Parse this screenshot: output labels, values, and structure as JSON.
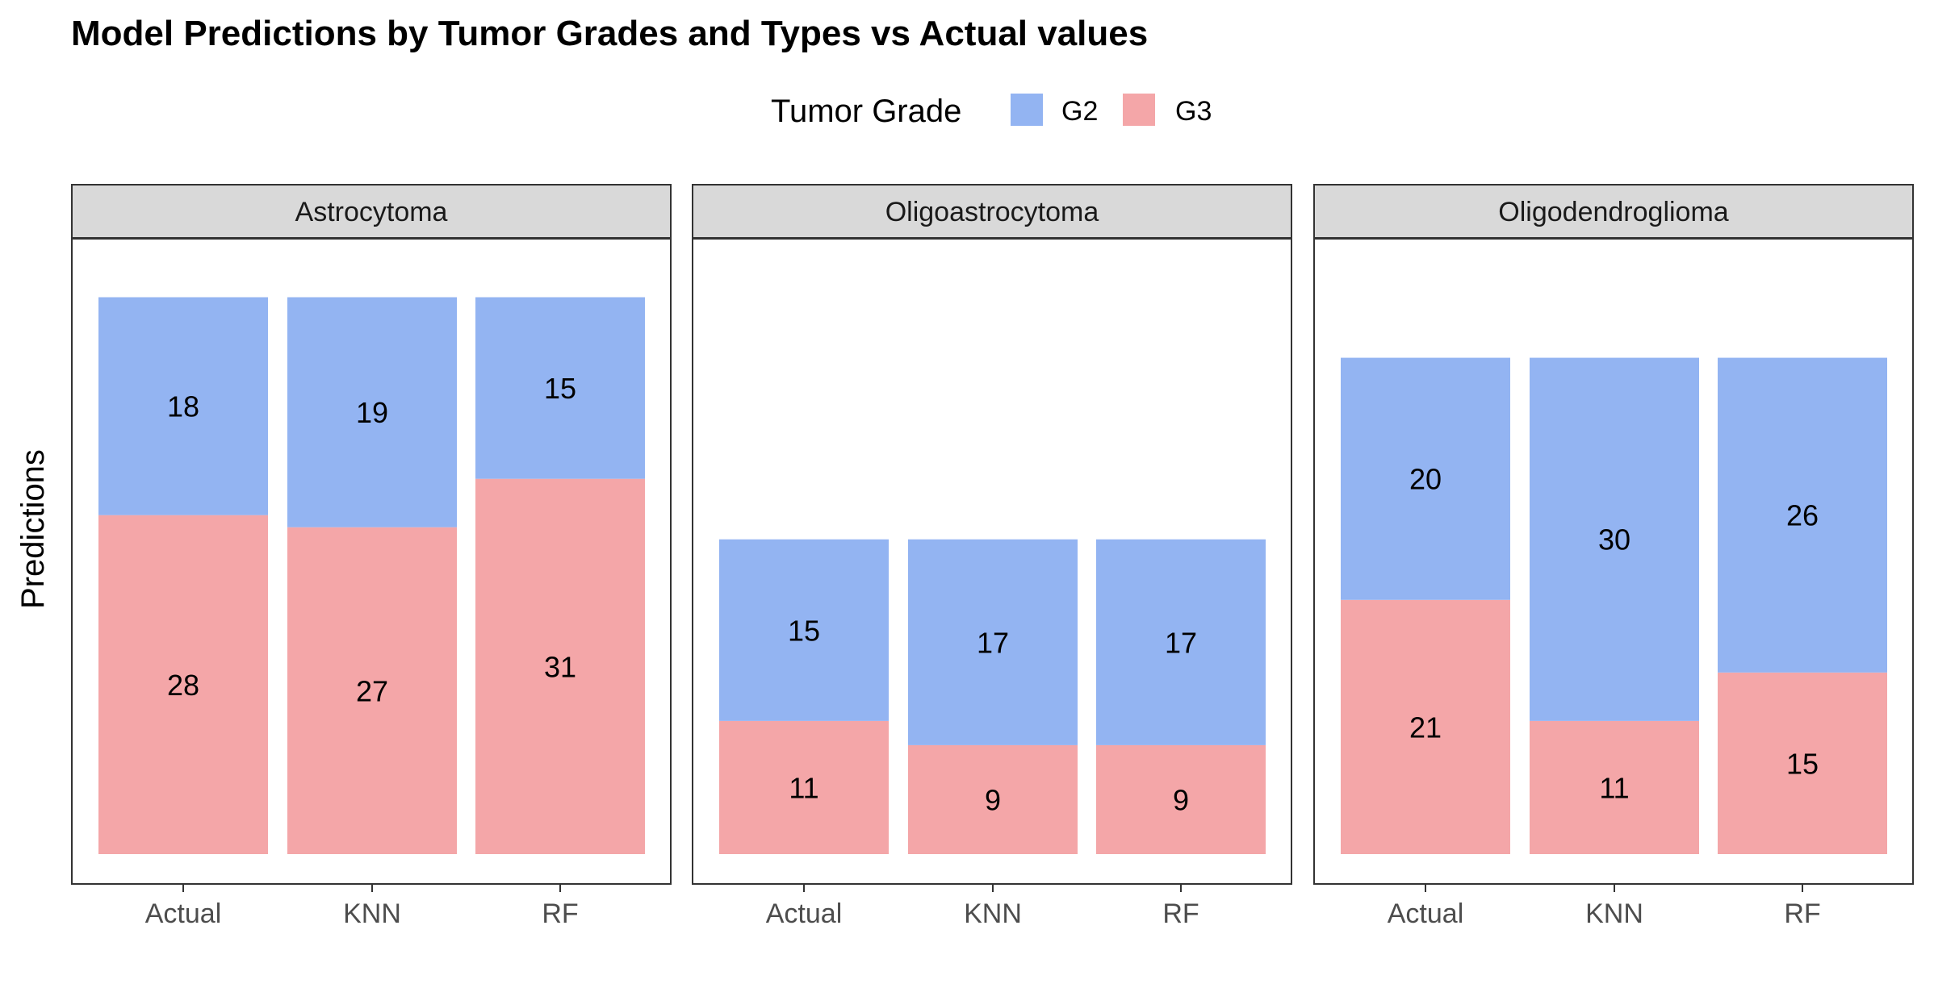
{
  "chart_data": {
    "type": "bar",
    "stacked": true,
    "title": "Model Predictions by Tumor Grades and Types vs Actual values",
    "xlabel": "",
    "ylabel": "Predictions",
    "legend": {
      "title": "Tumor Grade",
      "placement": "top",
      "entries": [
        {
          "name": "G2",
          "color": "#93b4f2"
        },
        {
          "name": "G3",
          "color": "#f4a6a8"
        }
      ]
    },
    "grid": false,
    "facets": [
      {
        "name": "Astrocytoma",
        "categories": [
          "Actual",
          "KNN",
          "RF"
        ],
        "series": [
          {
            "name": "G2",
            "values": [
              18,
              19,
              15
            ]
          },
          {
            "name": "G3",
            "values": [
              28,
              27,
              31
            ]
          }
        ]
      },
      {
        "name": "Oligoastrocytoma",
        "categories": [
          "Actual",
          "KNN",
          "RF"
        ],
        "series": [
          {
            "name": "G2",
            "values": [
              15,
              17,
              17
            ]
          },
          {
            "name": "G3",
            "values": [
              11,
              9,
              9
            ]
          }
        ]
      },
      {
        "name": "Oligodendroglioma",
        "categories": [
          "Actual",
          "KNN",
          "RF"
        ],
        "series": [
          {
            "name": "G2",
            "values": [
              20,
              30,
              26
            ]
          },
          {
            "name": "G3",
            "values": [
              21,
              11,
              15
            ]
          }
        ]
      }
    ],
    "ylim": [
      0,
      48.3
    ]
  }
}
